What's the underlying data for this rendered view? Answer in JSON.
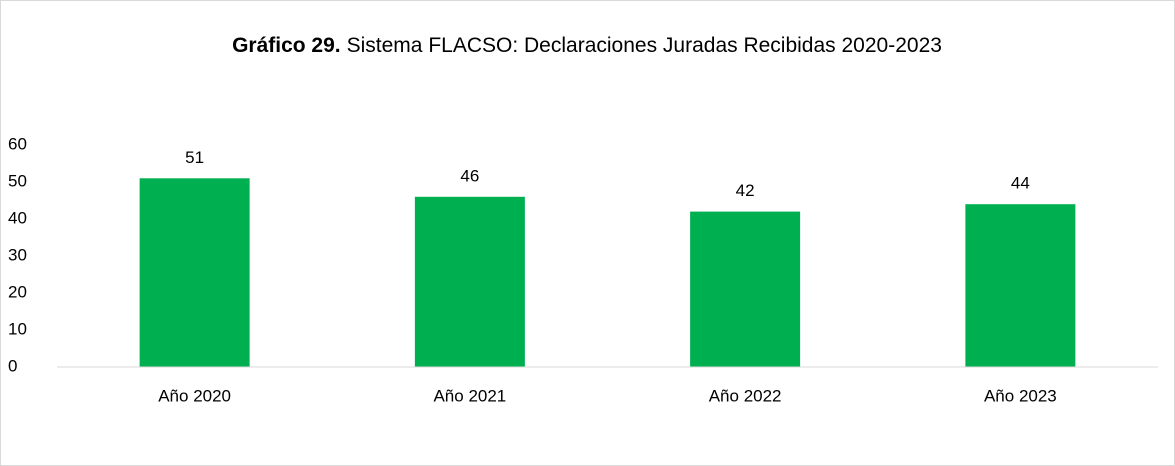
{
  "chart_data": {
    "type": "bar",
    "title": [
      "Gráfico 29.",
      "Sistema FLACSO: Declaraciones Juradas Recibidas 2020-2023"
    ],
    "categories": [
      "Año 2020",
      "Año 2021",
      "Año 2022",
      "Año 2023"
    ],
    "values": [
      51,
      46,
      42,
      44
    ],
    "color": "#00b050",
    "ylim": [
      0,
      60
    ],
    "yticks": [
      0,
      10,
      20,
      30,
      40,
      50,
      60
    ],
    "grid": false,
    "data_labels": true
  }
}
